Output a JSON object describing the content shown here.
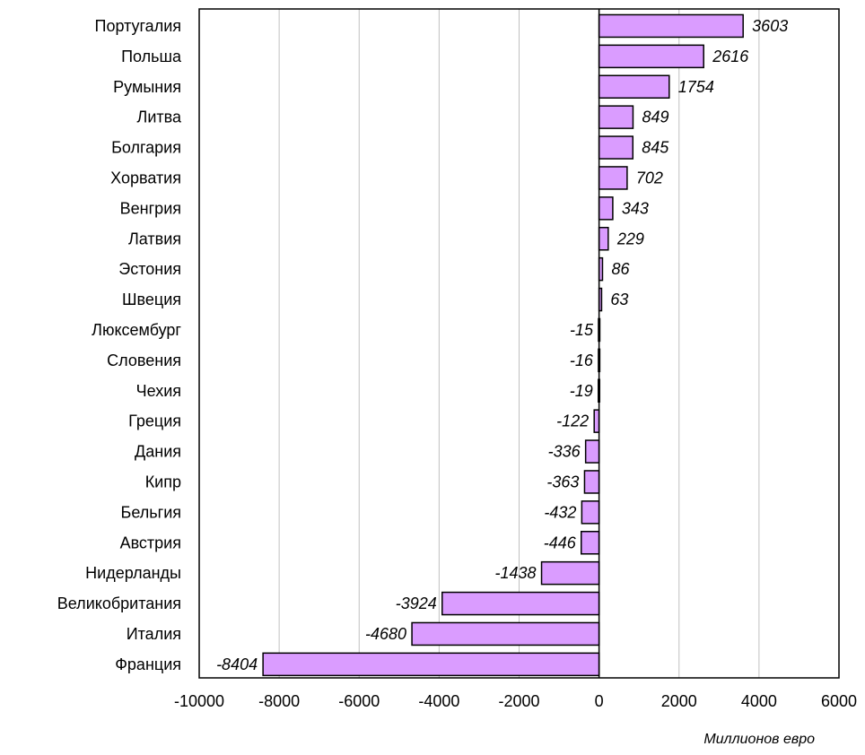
{
  "chart_data": {
    "type": "bar",
    "orientation": "horizontal",
    "title": "",
    "xlabel": "Миллионов евро",
    "ylabel": "",
    "xlim": [
      -10000,
      6000
    ],
    "x_ticks": [
      -10000,
      -8000,
      -6000,
      -4000,
      -2000,
      0,
      2000,
      4000,
      6000
    ],
    "grid": "vertical",
    "legend": "none",
    "bar_color": "#DA9CFF",
    "bar_edge_color": "#000000",
    "categories": [
      "Португалия",
      "Польша",
      "Румыния",
      "Литва",
      "Болгария",
      "Хорватия",
      "Венгрия",
      "Латвия",
      "Эстония",
      "Швеция",
      "Люксембург",
      "Словения",
      "Чехия",
      "Греция",
      "Дания",
      "Кипр",
      "Бельгия",
      "Австрия",
      "Нидерланды",
      "Великобритания",
      "Италия",
      "Франция"
    ],
    "values": [
      3603,
      2616,
      1754,
      849,
      845,
      702,
      343,
      229,
      86,
      63,
      -15,
      -16,
      -19,
      -122,
      -336,
      -363,
      -432,
      -446,
      -1438,
      -3924,
      -4680,
      -8404
    ]
  }
}
